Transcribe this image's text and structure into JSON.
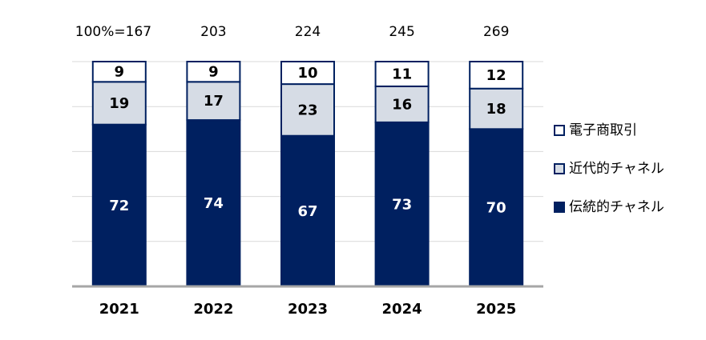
{
  "chart_data": {
    "type": "stacked_bar_100",
    "categories": [
      "2021",
      "2022",
      "2023",
      "2024",
      "2025"
    ],
    "totals": [
      {
        "value": 167,
        "label": "100%=167"
      },
      203,
      224,
      245,
      269
    ],
    "series": [
      {
        "name": "伝統的チャネル",
        "color": "#002060",
        "values": [
          72,
          74,
          67,
          73,
          70
        ]
      },
      {
        "name": "近代的チャネル",
        "color": "#d6dce5",
        "values": [
          19,
          17,
          23,
          16,
          18
        ]
      },
      {
        "name": "電子商取引",
        "color": "#ffffff",
        "values": [
          9,
          9,
          10,
          11,
          12
        ]
      }
    ],
    "ylim": [
      0,
      100
    ],
    "yticks": [
      0,
      20,
      40,
      60,
      80,
      100
    ],
    "grid": true,
    "legend": "right"
  }
}
